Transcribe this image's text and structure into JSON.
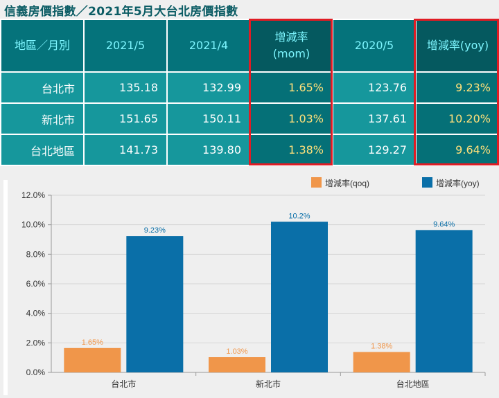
{
  "title": "信義房價指數／2021年5月大台北房價指數",
  "table": {
    "headers": [
      "地區／月別",
      "2021/5",
      "2021/4",
      "增減率\n(mom)",
      "2020/5",
      "增減率(yoy)"
    ],
    "rows": [
      [
        "台北市",
        "135.18",
        "132.99",
        "1.65%",
        "123.76",
        "9.23%"
      ],
      [
        "新北市",
        "151.65",
        "150.11",
        "1.03%",
        "137.61",
        "10.20%"
      ],
      [
        "台北地區",
        "141.73",
        "139.80",
        "1.38%",
        "129.27",
        "9.64%"
      ]
    ]
  },
  "colors": {
    "header_bg": "#05737b",
    "cell_bg": "#16979c",
    "highlight": "#e01c24",
    "qoq": "#f0964a",
    "yoy": "#0a6fa8"
  },
  "chart_data": {
    "type": "bar",
    "categories": [
      "台北市",
      "新北市",
      "台北地區"
    ],
    "series": [
      {
        "name": "增減率(qoq)",
        "values": [
          1.65,
          1.03,
          1.38
        ],
        "labels": [
          "1.65%",
          "1.03%",
          "1.38%"
        ],
        "color": "#f0964a"
      },
      {
        "name": "增減率(yoy)",
        "values": [
          9.23,
          10.2,
          9.64
        ],
        "labels": [
          "9.23%",
          "10.2%",
          "9.64%"
        ],
        "color": "#0a6fa8"
      }
    ],
    "ylim": [
      0,
      12
    ],
    "yticks": [
      "0.0%",
      "2.0%",
      "4.0%",
      "6.0%",
      "8.0%",
      "10.0%",
      "12.0%"
    ],
    "grid": true,
    "legend": "top-right"
  }
}
